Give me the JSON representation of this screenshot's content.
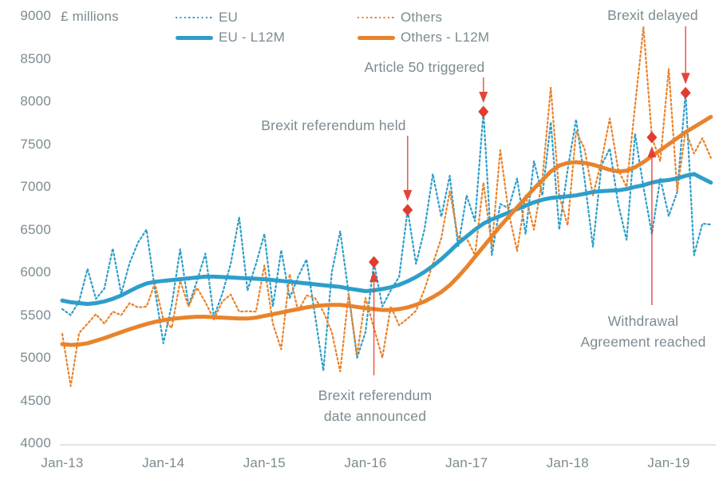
{
  "unit_label": "£ millions",
  "colors": {
    "eu_blue": "#2E9EC9",
    "others_orange": "#E8832C",
    "event_red": "#E23B30",
    "text_gray": "#7B8B90",
    "axis_line_gray": "#D6DCDD"
  },
  "legend": [
    {
      "label": "EU",
      "style": "dotted",
      "color": "#2E9EC9"
    },
    {
      "label": "EU - L12M",
      "style": "solid",
      "color": "#2E9EC9"
    },
    {
      "label": "Others",
      "style": "dotted",
      "color": "#E8832C"
    },
    {
      "label": "Others - L12M",
      "style": "solid",
      "color": "#E8832C"
    }
  ],
  "chart_data": {
    "type": "line",
    "title": "",
    "ylabel": "£ millions",
    "xlabel": "",
    "ylim": [
      4000,
      9000
    ],
    "y_ticks": [
      4000,
      4500,
      5000,
      5500,
      6000,
      6500,
      7000,
      7500,
      8000,
      8500,
      9000
    ],
    "x_tick_labels": [
      "Jan-13",
      "Jan-14",
      "Jan-15",
      "Jan-16",
      "Jan-17",
      "Jan-18",
      "Jan-19"
    ],
    "x_start_month": "Jan-13",
    "x_end_month": "Jun-19",
    "x_frequency": "monthly",
    "grid": false,
    "legend_position": "top",
    "series": [
      {
        "name": "EU",
        "style": "dotted",
        "color": "#2E9EC9",
        "values": [
          5570,
          5500,
          5660,
          6040,
          5690,
          5810,
          6280,
          5750,
          6110,
          6350,
          6500,
          5800,
          5170,
          5620,
          6270,
          5610,
          5900,
          6220,
          5480,
          5750,
          6100,
          6645,
          5790,
          6100,
          6450,
          5600,
          6260,
          5700,
          5950,
          6150,
          5500,
          4850,
          6000,
          6480,
          5750,
          5000,
          5300,
          6120,
          5600,
          5790,
          5950,
          6730,
          6100,
          6500,
          7150,
          6650,
          7130,
          6300,
          6900,
          6600,
          7880,
          6200,
          6800,
          6750,
          7100,
          6450,
          7300,
          6900,
          7760,
          6500,
          7200,
          7790,
          7100,
          6300,
          7250,
          7450,
          6800,
          6380,
          7620,
          7000,
          6450,
          7100,
          6660,
          6940,
          8100,
          6200,
          6570,
          6560
        ]
      },
      {
        "name": "Others",
        "style": "dotted",
        "color": "#E8832C",
        "values": [
          5280,
          4670,
          5290,
          5400,
          5510,
          5400,
          5540,
          5500,
          5640,
          5590,
          5600,
          5870,
          5450,
          5350,
          5900,
          5600,
          5820,
          5650,
          5450,
          5660,
          5740,
          5540,
          5545,
          5540,
          6080,
          5400,
          5100,
          5980,
          5540,
          5730,
          5700,
          5540,
          5300,
          4840,
          5750,
          5030,
          5700,
          5350,
          5000,
          5600,
          5380,
          5460,
          5550,
          5800,
          6100,
          6400,
          6950,
          6400,
          6400,
          6200,
          7050,
          6300,
          7430,
          6700,
          6250,
          6900,
          6500,
          7100,
          8160,
          6900,
          6550,
          7650,
          7450,
          6900,
          7300,
          7800,
          7200,
          7000,
          7950,
          8870,
          7580,
          7300,
          8380,
          6950,
          7660,
          7390,
          7570,
          7340
        ]
      },
      {
        "name": "EU - L12M",
        "style": "solid",
        "color": "#2E9EC9",
        "values": [
          5670,
          5650,
          5640,
          5630,
          5640,
          5660,
          5690,
          5730,
          5780,
          5830,
          5870,
          5890,
          5900,
          5910,
          5920,
          5930,
          5940,
          5950,
          5950,
          5945,
          5940,
          5935,
          5930,
          5925,
          5920,
          5910,
          5900,
          5890,
          5880,
          5870,
          5860,
          5850,
          5840,
          5830,
          5810,
          5795,
          5780,
          5790,
          5805,
          5825,
          5855,
          5895,
          5945,
          6005,
          6075,
          6155,
          6245,
          6340,
          6420,
          6500,
          6570,
          6620,
          6660,
          6700,
          6740,
          6780,
          6820,
          6850,
          6870,
          6880,
          6890,
          6900,
          6920,
          6940,
          6950,
          6955,
          6960,
          6975,
          7000,
          7020,
          7050,
          7070,
          7080,
          7100,
          7130,
          7150,
          7100,
          7050
        ]
      },
      {
        "name": "Others - L12M",
        "style": "solid",
        "color": "#E8832C",
        "values": [
          5160,
          5150,
          5155,
          5170,
          5200,
          5230,
          5265,
          5300,
          5335,
          5365,
          5395,
          5420,
          5440,
          5455,
          5465,
          5475,
          5480,
          5480,
          5475,
          5470,
          5465,
          5460,
          5460,
          5470,
          5490,
          5510,
          5530,
          5550,
          5570,
          5590,
          5605,
          5615,
          5620,
          5620,
          5610,
          5595,
          5580,
          5570,
          5560,
          5560,
          5570,
          5590,
          5620,
          5660,
          5710,
          5770,
          5850,
          5950,
          6060,
          6180,
          6300,
          6420,
          6540,
          6650,
          6760,
          6870,
          6980,
          7080,
          7180,
          7250,
          7280,
          7290,
          7280,
          7260,
          7230,
          7200,
          7180,
          7190,
          7230,
          7290,
          7360,
          7430,
          7500,
          7570,
          7640,
          7700,
          7760,
          7820
        ]
      }
    ],
    "events": [
      {
        "id": "date-announced",
        "label": "Brexit referendum date announced",
        "label_line1": "Brexit referendum",
        "label_line2": "date announced",
        "month": "Feb-16",
        "month_index": 37,
        "value": 6120,
        "series": "EU"
      },
      {
        "id": "referendum-held",
        "label": "Brexit referendum held",
        "month": "Jun-16",
        "month_index": 41,
        "value": 6730,
        "series": "EU"
      },
      {
        "id": "article-50",
        "label": "Article 50 triggered",
        "month": "Mar-17",
        "month_index": 50,
        "value": 7880,
        "series": "EU"
      },
      {
        "id": "withdrawal-agreement",
        "label": "Withdrawal Agreement reached",
        "label_line1": "Withdrawal",
        "label_line2": "Agreement reached",
        "month": "Nov-18",
        "month_index": 70,
        "value": 7580,
        "series": "Others"
      },
      {
        "id": "brexit-delayed",
        "label": "Brexit delayed",
        "month": "Mar-19",
        "month_index": 74,
        "value": 8100,
        "series": "EU"
      }
    ]
  }
}
